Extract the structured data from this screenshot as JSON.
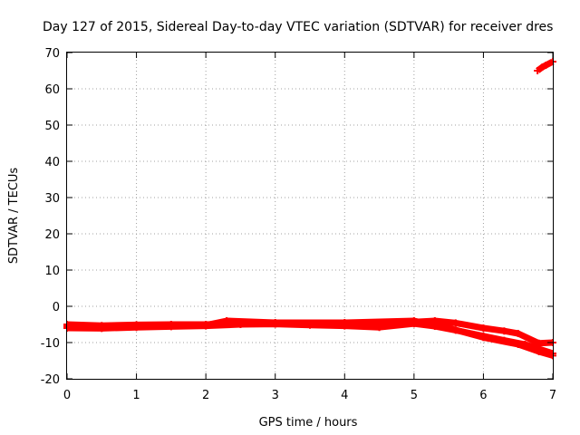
{
  "chart_data": {
    "type": "scatter",
    "title": "Day 127 of 2015, Sidereal Day-to-day VTEC variation (SDTVAR) for receiver dres",
    "xlabel": "GPS time / hours",
    "ylabel": "SDTVAR / TECUs",
    "xlim": [
      0,
      7
    ],
    "ylim": [
      -20,
      70
    ],
    "xticks": [
      "0",
      "1",
      "2",
      "3",
      "4",
      "5",
      "6",
      "7"
    ],
    "yticks": [
      "-20",
      "-10",
      "0",
      "10",
      "20",
      "30",
      "40",
      "50",
      "60",
      "70"
    ],
    "grid": true,
    "color": "#ff0000",
    "series": [
      {
        "x": [
          0.0,
          0.5,
          1.0,
          1.5,
          2.0,
          2.5,
          3.0,
          3.5,
          4.0,
          4.5,
          5.0,
          5.3,
          5.6,
          6.0,
          6.3,
          6.5,
          6.8,
          7.0
        ],
        "y": [
          -5.0,
          -5.3,
          -5.1,
          -5.0,
          -5.0,
          -4.8,
          -4.6,
          -4.7,
          -4.8,
          -5.2,
          -4.3,
          -4.0,
          -4.6,
          -6.0,
          -6.8,
          -7.5,
          -10.2,
          -10.0
        ]
      },
      {
        "x": [
          0.0,
          0.5,
          1.0,
          1.5,
          2.0,
          2.5,
          3.0,
          3.5,
          4.0,
          4.5,
          5.0,
          5.3,
          5.6,
          6.0,
          6.3,
          6.6,
          7.0
        ],
        "y": [
          -6.0,
          -6.1,
          -5.8,
          -5.6,
          -5.4,
          -5.0,
          -4.9,
          -5.2,
          -5.4,
          -5.8,
          -4.8,
          -5.5,
          -6.6,
          -8.2,
          -9.4,
          -10.5,
          -13.0
        ]
      },
      {
        "x": [
          0.0,
          1.0,
          2.0,
          2.3,
          3.0,
          4.0,
          5.0,
          5.5,
          6.0,
          6.5,
          6.8,
          7.0
        ],
        "y": [
          -5.5,
          -5.4,
          -5.2,
          -4.0,
          -4.5,
          -4.5,
          -4.0,
          -6.0,
          -8.6,
          -10.5,
          -12.5,
          -13.6
        ]
      },
      {
        "x": [
          6.78,
          6.85,
          6.9,
          7.0
        ],
        "y": [
          65.0,
          66.0,
          66.5,
          67.5
        ]
      }
    ]
  }
}
